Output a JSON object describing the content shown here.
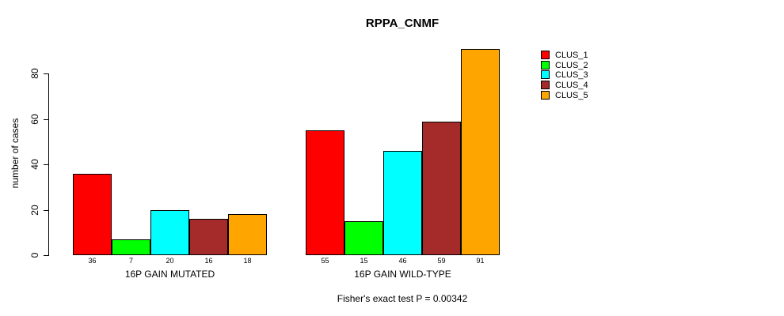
{
  "figure": {
    "title": "RPPA_CNMF",
    "footer": "Fisher's exact test P = 0.00342"
  },
  "chart_data": {
    "type": "bar",
    "title": "RPPA_CNMF",
    "xlabel": "",
    "ylabel": "number of cases",
    "ylim": [
      0,
      91
    ],
    "yticks": [
      0,
      20,
      40,
      60,
      80
    ],
    "grid": false,
    "legend_position": "top-right",
    "groups": [
      {
        "label": "16P GAIN MUTATED",
        "values": [
          36,
          7,
          20,
          16,
          18
        ]
      },
      {
        "label": "16P GAIN WILD-TYPE",
        "values": [
          55,
          15,
          46,
          59,
          91
        ]
      }
    ],
    "series": [
      {
        "name": "CLUS_1",
        "color": "#FF0000",
        "values": [
          36,
          55
        ]
      },
      {
        "name": "CLUS_2",
        "color": "#00FF00",
        "values": [
          7,
          15
        ]
      },
      {
        "name": "CLUS_3",
        "color": "#00FFFF",
        "values": [
          20,
          46
        ]
      },
      {
        "name": "CLUS_4",
        "color": "#A52A2A",
        "values": [
          16,
          59
        ]
      },
      {
        "name": "CLUS_5",
        "color": "#FFA500",
        "values": [
          18,
          91
        ]
      }
    ],
    "annotation": "Fisher's exact test P = 0.00342"
  }
}
